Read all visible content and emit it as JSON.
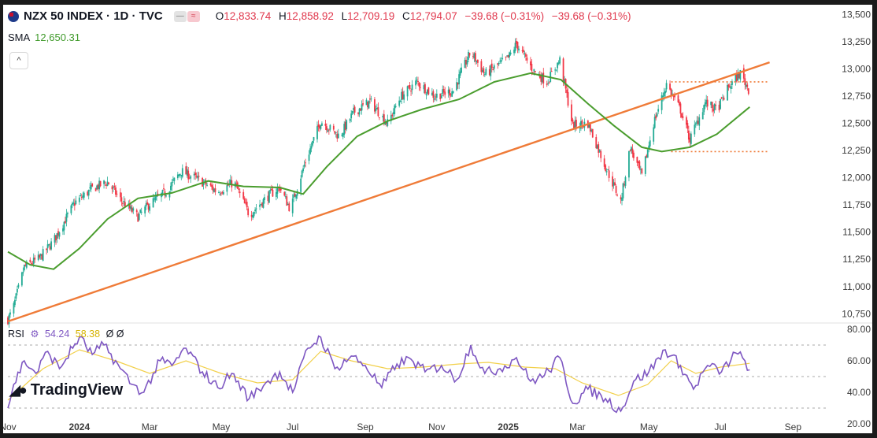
{
  "header": {
    "symbol": "NZX 50 INDEX · 1D · TVC",
    "flag_icon": "nz-flag-icon",
    "o_label": "O",
    "o_value": "12,833.74",
    "h_label": "H",
    "h_value": "12,858.92",
    "l_label": "L",
    "l_value": "12,709.19",
    "c_label": "C",
    "c_value": "12,794.07",
    "change": "−39.68 (−0.31%)",
    "change2": "−39.68 (−0.31%)"
  },
  "sma": {
    "label": "SMA",
    "value": "12,650.31"
  },
  "rsi": {
    "label": "RSI",
    "value1": "54.24",
    "value2": "58.38",
    "extra": "Ø Ø"
  },
  "logo": {
    "text": "TradingView",
    "icon": "tradingview-logo-icon"
  },
  "colors": {
    "up": "#22ab94",
    "down": "#f23645",
    "sma": "#4a9d2e",
    "trendline": "#ef7b38",
    "rsi": "#7e57c2",
    "rsi_ma": "#f2d04a",
    "grid": "#d9d9d9",
    "axis_text": "#3a3a3a"
  },
  "chart_data": [
    {
      "type": "candlestick",
      "title": "NZX 50 INDEX · 1D · TVC",
      "y_ticks": [
        10750,
        11000,
        11250,
        11500,
        11750,
        12000,
        12250,
        12500,
        12750,
        13000,
        13250,
        13500
      ],
      "y_tick_labels": [
        "10,750",
        "11,000",
        "11,250",
        "11,500",
        "11,750",
        "12,000",
        "12,250",
        "12,500",
        "12,750",
        "13,000",
        "13,250",
        "13,500"
      ],
      "ylim": [
        10680,
        13560
      ],
      "x_ticks": [
        "Nov",
        "2024",
        "Mar",
        "May",
        "Jul",
        "Sep",
        "Nov",
        "2025",
        "Mar",
        "May",
        "Jul",
        "Sep"
      ],
      "x_tick_dates": [
        "2023-11-01",
        "2024-01-01",
        "2024-03-01",
        "2024-05-01",
        "2024-07-01",
        "2024-09-01",
        "2024-11-01",
        "2025-01-01",
        "2025-03-01",
        "2025-05-01",
        "2025-07-01",
        "2025-09-01"
      ],
      "xlim": [
        "2023-11-01",
        "2025-10-01"
      ],
      "close_path": [
        [
          "2023-11-01",
          10700
        ],
        [
          "2023-11-05",
          10780
        ],
        [
          "2023-11-15",
          11180
        ],
        [
          "2023-11-28",
          11260
        ],
        [
          "2023-12-10",
          11420
        ],
        [
          "2023-12-28",
          11770
        ],
        [
          "2024-01-12",
          11900
        ],
        [
          "2024-01-25",
          11960
        ],
        [
          "2024-02-05",
          11800
        ],
        [
          "2024-02-20",
          11640
        ],
        [
          "2024-03-01",
          11760
        ],
        [
          "2024-03-15",
          11870
        ],
        [
          "2024-03-28",
          12060
        ],
        [
          "2024-04-12",
          11980
        ],
        [
          "2024-04-28",
          11870
        ],
        [
          "2024-05-12",
          11960
        ],
        [
          "2024-05-25",
          11660
        ],
        [
          "2024-06-10",
          11830
        ],
        [
          "2024-06-20",
          11910
        ],
        [
          "2024-06-29",
          11710
        ],
        [
          "2024-07-12",
          12150
        ],
        [
          "2024-07-25",
          12520
        ],
        [
          "2024-08-10",
          12380
        ],
        [
          "2024-08-22",
          12600
        ],
        [
          "2024-09-05",
          12700
        ],
        [
          "2024-09-20",
          12500
        ],
        [
          "2024-10-01",
          12740
        ],
        [
          "2024-10-15",
          12880
        ],
        [
          "2024-10-30",
          12750
        ],
        [
          "2024-11-15",
          12800
        ],
        [
          "2024-11-30",
          13160
        ],
        [
          "2024-12-12",
          12950
        ],
        [
          "2025-01-01",
          13100
        ],
        [
          "2025-01-08",
          13230
        ],
        [
          "2025-01-22",
          12990
        ],
        [
          "2025-02-03",
          12880
        ],
        [
          "2025-02-14",
          13080
        ],
        [
          "2025-02-25",
          12480
        ],
        [
          "2025-03-10",
          12500
        ],
        [
          "2025-03-25",
          12100
        ],
        [
          "2025-04-07",
          11780
        ],
        [
          "2025-04-15",
          12280
        ],
        [
          "2025-04-25",
          12010
        ],
        [
          "2025-05-05",
          12500
        ],
        [
          "2025-05-16",
          12860
        ],
        [
          "2025-05-28",
          12620
        ],
        [
          "2025-06-05",
          12350
        ],
        [
          "2025-06-18",
          12690
        ],
        [
          "2025-06-28",
          12620
        ],
        [
          "2025-07-08",
          12830
        ],
        [
          "2025-07-18",
          12960
        ],
        [
          "2025-07-26",
          12794
        ]
      ]
    },
    {
      "type": "line",
      "series": [
        {
          "name": "SMA",
          "values": [
            [
              "2023-11-01",
              11320
            ],
            [
              "2023-11-20",
              11200
            ],
            [
              "2023-12-10",
              11160
            ],
            [
              "2024-01-01",
              11350
            ],
            [
              "2024-01-25",
              11620
            ],
            [
              "2024-02-20",
              11810
            ],
            [
              "2024-03-20",
              11860
            ],
            [
              "2024-04-20",
              11970
            ],
            [
              "2024-05-20",
              11920
            ],
            [
              "2024-06-20",
              11910
            ],
            [
              "2024-07-10",
              11850
            ],
            [
              "2024-07-30",
              12100
            ],
            [
              "2024-08-25",
              12380
            ],
            [
              "2024-09-20",
              12520
            ],
            [
              "2024-10-20",
              12630
            ],
            [
              "2024-11-20",
              12720
            ],
            [
              "2024-12-20",
              12880
            ],
            [
              "2025-01-20",
              12960
            ],
            [
              "2025-02-15",
              12900
            ],
            [
              "2025-03-10",
              12680
            ],
            [
              "2025-04-01",
              12480
            ],
            [
              "2025-04-25",
              12280
            ],
            [
              "2025-05-12",
              12240
            ],
            [
              "2025-06-05",
              12280
            ],
            [
              "2025-06-28",
              12400
            ],
            [
              "2025-07-26",
              12650
            ]
          ]
        }
      ]
    },
    {
      "type": "line",
      "series": [
        {
          "name": "",
          "values": [
            [
              "2023-11-01",
              10680
            ],
            [
              "2025-08-12",
              13060
            ]
          ]
        }
      ]
    },
    {
      "type": "line",
      "series": [
        {
          "name": "",
          "values": [
            [
              "2025-05-20",
              12880
            ],
            [
              "2025-08-10",
              12880
            ]
          ]
        },
        {
          "name": "",
          "values": [
            [
              "2025-05-20",
              12240
            ],
            [
              "2025-08-10",
              12240
            ]
          ]
        }
      ]
    },
    {
      "type": "line",
      "title": "RSI",
      "y_ticks": [
        20,
        40,
        60,
        80
      ],
      "y_tick_labels": [
        "20.00",
        "40.00",
        "60.00",
        "80.00"
      ],
      "ylim": [
        18,
        82
      ],
      "levels": [
        70,
        50,
        30
      ],
      "series": [
        {
          "name": "RSI",
          "values": [
            [
              "2023-11-01",
              30
            ],
            [
              "2023-11-06",
              45
            ],
            [
              "2023-11-15",
              60
            ],
            [
              "2023-11-25",
              52
            ],
            [
              "2023-12-05",
              66
            ],
            [
              "2023-12-15",
              55
            ],
            [
              "2024-01-01",
              75
            ],
            [
              "2024-01-12",
              64
            ],
            [
              "2024-01-22",
              70
            ],
            [
              "2024-02-05",
              55
            ],
            [
              "2024-02-15",
              45
            ],
            [
              "2024-02-25",
              40
            ],
            [
              "2024-03-10",
              60
            ],
            [
              "2024-03-20",
              57
            ],
            [
              "2024-04-01",
              68
            ],
            [
              "2024-04-15",
              53
            ],
            [
              "2024-04-28",
              43
            ],
            [
              "2024-05-10",
              52
            ],
            [
              "2024-05-25",
              36
            ],
            [
              "2024-06-08",
              46
            ],
            [
              "2024-06-20",
              53
            ],
            [
              "2024-07-01",
              40
            ],
            [
              "2024-07-14",
              68
            ],
            [
              "2024-07-25",
              75
            ],
            [
              "2024-08-06",
              55
            ],
            [
              "2024-08-20",
              63
            ],
            [
              "2024-09-01",
              57
            ],
            [
              "2024-09-15",
              43
            ],
            [
              "2024-09-28",
              58
            ],
            [
              "2024-10-10",
              61
            ],
            [
              "2024-10-22",
              53
            ],
            [
              "2024-11-05",
              57
            ],
            [
              "2024-11-18",
              48
            ],
            [
              "2024-11-30",
              70
            ],
            [
              "2024-12-12",
              52
            ],
            [
              "2024-12-25",
              55
            ],
            [
              "2025-01-08",
              62
            ],
            [
              "2025-01-20",
              47
            ],
            [
              "2025-02-01",
              51
            ],
            [
              "2025-02-14",
              62
            ],
            [
              "2025-02-25",
              33
            ],
            [
              "2025-03-10",
              42
            ],
            [
              "2025-03-25",
              36
            ],
            [
              "2025-04-07",
              28
            ],
            [
              "2025-04-18",
              47
            ],
            [
              "2025-05-01",
              53
            ],
            [
              "2025-05-15",
              67
            ],
            [
              "2025-05-28",
              57
            ],
            [
              "2025-06-08",
              42
            ],
            [
              "2025-06-20",
              57
            ],
            [
              "2025-07-02",
              53
            ],
            [
              "2025-07-14",
              65
            ],
            [
              "2025-07-22",
              60
            ],
            [
              "2025-07-26",
              54.24
            ]
          ]
        },
        {
          "name": "",
          "values": [
            [
              "2023-11-01",
              35
            ],
            [
              "2023-12-01",
              55
            ],
            [
              "2024-01-01",
              67
            ],
            [
              "2024-02-01",
              60
            ],
            [
              "2024-03-01",
              52
            ],
            [
              "2024-04-01",
              60
            ],
            [
              "2024-05-01",
              52
            ],
            [
              "2024-06-01",
              46
            ],
            [
              "2024-07-01",
              48
            ],
            [
              "2024-07-25",
              66
            ],
            [
              "2024-08-20",
              60
            ],
            [
              "2024-09-20",
              55
            ],
            [
              "2024-10-20",
              56
            ],
            [
              "2024-11-20",
              58
            ],
            [
              "2024-12-15",
              59
            ],
            [
              "2025-01-15",
              56
            ],
            [
              "2025-02-10",
              55
            ],
            [
              "2025-03-05",
              46
            ],
            [
              "2025-04-05",
              38
            ],
            [
              "2025-04-30",
              45
            ],
            [
              "2025-05-20",
              60
            ],
            [
              "2025-06-10",
              52
            ],
            [
              "2025-07-01",
              56
            ],
            [
              "2025-07-26",
              58.38
            ]
          ]
        }
      ]
    }
  ]
}
